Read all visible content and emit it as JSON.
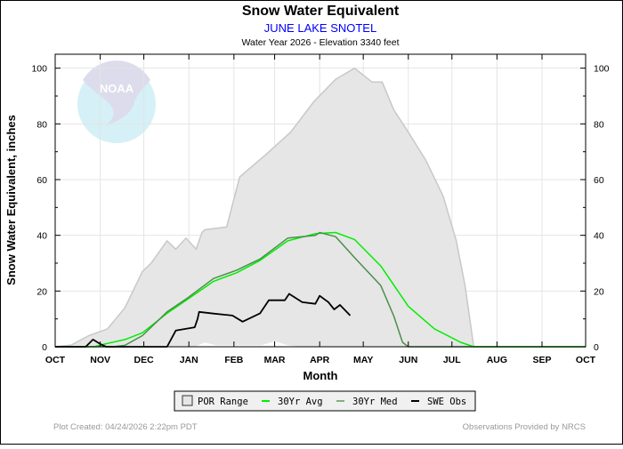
{
  "chart_data": {
    "type": "line",
    "title": "Snow Water Equivalent",
    "subtitle": "JUNE LAKE SNOTEL",
    "subtitle2": "Water Year 2026 -  Elevation 3340 feet",
    "xlabel": "Month",
    "ylabel": "Snow Water Equivalent, inches",
    "x_ticks": [
      "OCT",
      "NOV",
      "DEC",
      "JAN",
      "FEB",
      "MAR",
      "APR",
      "MAY",
      "JUN",
      "JUL",
      "AUG",
      "SEP",
      "OCT"
    ],
    "xlim": [
      "2025-10-01",
      "2026-10-01"
    ],
    "y_ticks": [
      0,
      20,
      40,
      60,
      80,
      100
    ],
    "ylim": [
      0,
      105
    ],
    "grid": true,
    "legend_placement": "bottom",
    "logo_text": "NOAA",
    "footer_left": "Plot Created: 04/24/2026 2:22pm PDT",
    "footer_right": "Observations Provided by NRCS",
    "colors": {
      "por": "#e6e6e6",
      "por_edge": "#c8c8c8",
      "avg": "#00ee00",
      "med": "#4a8f4a",
      "obs": "#000000",
      "subtitle": "#0000ff"
    },
    "series": [
      {
        "name": "POR Range",
        "kind": "band",
        "max": [
          [
            "2025-10-01",
            0
          ],
          [
            "2025-10-12",
            0.6
          ],
          [
            "2025-10-24",
            4
          ],
          [
            "2025-11-06",
            6.4
          ],
          [
            "2025-11-18",
            14
          ],
          [
            "2025-11-30",
            27
          ],
          [
            "2025-12-06",
            30
          ],
          [
            "2025-12-17",
            38
          ],
          [
            "2025-12-23",
            35
          ],
          [
            "2025-12-30",
            39
          ],
          [
            "2026-01-06",
            35
          ],
          [
            "2026-01-10",
            41
          ],
          [
            "2026-01-12",
            42
          ],
          [
            "2026-01-27",
            43
          ],
          [
            "2026-01-31",
            51
          ],
          [
            "2026-02-05",
            61
          ],
          [
            "2026-02-23",
            69
          ],
          [
            "2026-03-12",
            77
          ],
          [
            "2026-03-28",
            88
          ],
          [
            "2026-04-12",
            96
          ],
          [
            "2026-04-25",
            100
          ],
          [
            "2026-05-07",
            95
          ],
          [
            "2026-05-14",
            95
          ],
          [
            "2026-05-22",
            85
          ],
          [
            "2026-06-01",
            77
          ],
          [
            "2026-06-13",
            67
          ],
          [
            "2026-06-25",
            54
          ],
          [
            "2026-07-04",
            38
          ],
          [
            "2026-07-10",
            22
          ],
          [
            "2026-07-16",
            0
          ],
          [
            "2026-10-01",
            0
          ]
        ],
        "min": [
          [
            "2025-10-01",
            0
          ],
          [
            "2026-01-05",
            0
          ],
          [
            "2026-01-12",
            1.5
          ],
          [
            "2026-01-20",
            0.5
          ],
          [
            "2026-02-20",
            0.5
          ],
          [
            "2026-03-01",
            2
          ],
          [
            "2026-03-10",
            0.5
          ],
          [
            "2026-03-20",
            0
          ],
          [
            "2026-10-01",
            0
          ]
        ]
      },
      {
        "name": "30Yr Avg",
        "kind": "line",
        "values": [
          [
            "2025-10-01",
            0
          ],
          [
            "2025-10-28",
            0
          ],
          [
            "2025-11-01",
            0.6
          ],
          [
            "2025-11-18",
            2.6
          ],
          [
            "2025-11-30",
            5
          ],
          [
            "2025-12-17",
            12
          ],
          [
            "2025-12-31",
            17
          ],
          [
            "2026-01-18",
            23.5
          ],
          [
            "2026-02-03",
            26.6
          ],
          [
            "2026-02-19",
            31
          ],
          [
            "2026-03-10",
            38
          ],
          [
            "2026-03-29",
            40.6
          ],
          [
            "2026-04-12",
            41
          ],
          [
            "2026-04-25",
            38.5
          ],
          [
            "2026-05-13",
            29
          ],
          [
            "2026-06-01",
            14.5
          ],
          [
            "2026-06-19",
            6.4
          ],
          [
            "2026-07-07",
            1.6
          ],
          [
            "2026-07-16",
            0
          ],
          [
            "2026-10-01",
            0
          ]
        ]
      },
      {
        "name": "30Yr Med",
        "kind": "line",
        "values": [
          [
            "2025-10-01",
            0
          ],
          [
            "2025-11-10",
            0
          ],
          [
            "2025-11-18",
            0.5
          ],
          [
            "2025-11-30",
            4
          ],
          [
            "2025-12-17",
            12.5
          ],
          [
            "2025-12-31",
            17.5
          ],
          [
            "2026-01-18",
            24.5
          ],
          [
            "2026-02-03",
            27.5
          ],
          [
            "2026-02-19",
            31.5
          ],
          [
            "2026-03-10",
            39
          ],
          [
            "2026-03-29",
            40
          ],
          [
            "2026-04-01",
            41
          ],
          [
            "2026-04-12",
            39.5
          ],
          [
            "2026-04-25",
            32
          ],
          [
            "2026-05-13",
            22
          ],
          [
            "2026-05-22",
            11
          ],
          [
            "2026-05-28",
            1.6
          ],
          [
            "2026-06-01",
            0
          ],
          [
            "2026-10-01",
            0
          ]
        ]
      },
      {
        "name": "SWE Obs",
        "kind": "line",
        "values": [
          [
            "2025-10-01",
            0
          ],
          [
            "2025-10-22",
            0
          ],
          [
            "2025-10-27",
            2.6
          ],
          [
            "2025-11-01",
            1
          ],
          [
            "2025-11-05",
            0
          ],
          [
            "2025-12-17",
            0
          ],
          [
            "2025-12-23",
            5.8
          ],
          [
            "2026-01-05",
            7
          ],
          [
            "2026-01-07",
            10
          ],
          [
            "2026-01-08",
            12.5
          ],
          [
            "2026-01-18",
            11.9
          ],
          [
            "2026-01-31",
            11.2
          ],
          [
            "2026-02-07",
            9
          ],
          [
            "2026-02-19",
            12
          ],
          [
            "2026-02-25",
            16.7
          ],
          [
            "2026-03-08",
            16.7
          ],
          [
            "2026-03-11",
            19
          ],
          [
            "2026-03-20",
            16
          ],
          [
            "2026-03-29",
            15.4
          ],
          [
            "2026-04-01",
            18.3
          ],
          [
            "2026-04-07",
            16
          ],
          [
            "2026-04-11",
            13.4
          ],
          [
            "2026-04-15",
            15
          ],
          [
            "2026-04-22",
            11.2
          ]
        ]
      }
    ]
  }
}
